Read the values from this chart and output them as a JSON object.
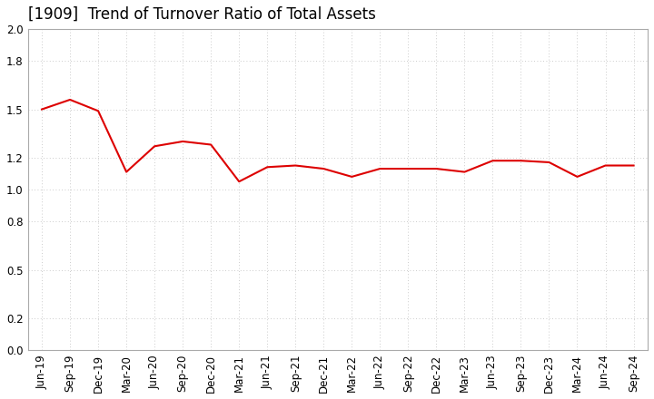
{
  "title": "[1909]  Trend of Turnover Ratio of Total Assets",
  "x_labels": [
    "Jun-19",
    "Sep-19",
    "Dec-19",
    "Mar-20",
    "Jun-20",
    "Sep-20",
    "Dec-20",
    "Mar-21",
    "Jun-21",
    "Sep-21",
    "Dec-21",
    "Mar-22",
    "Jun-22",
    "Sep-22",
    "Dec-22",
    "Mar-23",
    "Jun-23",
    "Sep-23",
    "Dec-23",
    "Mar-24",
    "Jun-24",
    "Sep-24"
  ],
  "y_values": [
    1.5,
    1.56,
    1.49,
    1.11,
    1.27,
    1.3,
    1.28,
    1.05,
    1.14,
    1.15,
    1.13,
    1.08,
    1.13,
    1.13,
    1.13,
    1.11,
    1.18,
    1.18,
    1.17,
    1.08,
    1.15,
    1.15
  ],
  "line_color": "#dd0000",
  "line_width": 1.5,
  "ylim": [
    0.0,
    2.0
  ],
  "yticks": [
    0.0,
    0.2,
    0.5,
    0.8,
    1.0,
    1.2,
    1.5,
    1.8,
    2.0
  ],
  "background_color": "#ffffff",
  "grid_color": "#bbbbbb",
  "title_fontsize": 12,
  "tick_fontsize": 8.5,
  "spine_color": "#aaaaaa"
}
